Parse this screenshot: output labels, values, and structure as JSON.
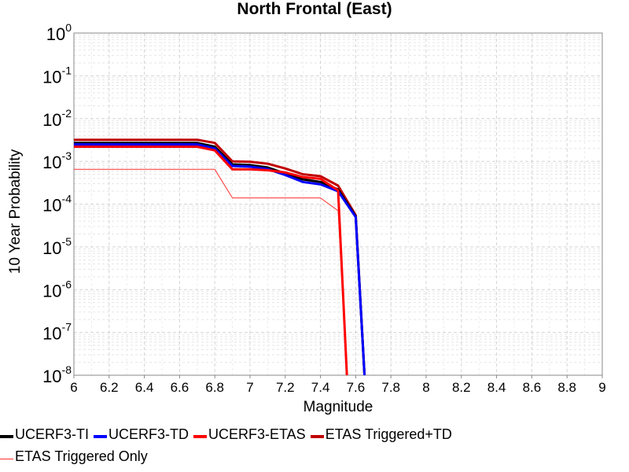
{
  "chart_data": {
    "type": "line",
    "title": "North Frontal  (East)",
    "xlabel": "Magnitude",
    "ylabel": "10 Year Probability",
    "xlim": [
      6,
      9
    ],
    "ylim": [
      1e-08,
      1
    ],
    "yscale": "log",
    "grid": true,
    "x_ticks": [
      "6",
      "6.2",
      "6.4",
      "6.6",
      "6.8",
      "7",
      "7.2",
      "7.4",
      "7.6",
      "7.8",
      "8",
      "8.2",
      "8.4",
      "8.6",
      "8.8",
      "9"
    ],
    "y_ticks": [
      {
        "value": 1,
        "base": "10",
        "exp": "0"
      },
      {
        "value": 0.1,
        "base": "10",
        "exp": "-1"
      },
      {
        "value": 0.01,
        "base": "10",
        "exp": "-2"
      },
      {
        "value": 0.001,
        "base": "10",
        "exp": "-3"
      },
      {
        "value": 0.0001,
        "base": "10",
        "exp": "-4"
      },
      {
        "value": 1e-05,
        "base": "10",
        "exp": "-5"
      },
      {
        "value": 1e-06,
        "base": "10",
        "exp": "-6"
      },
      {
        "value": 1e-07,
        "base": "10",
        "exp": "-7"
      },
      {
        "value": 1e-08,
        "base": "10",
        "exp": "-8"
      }
    ],
    "legend_position": "bottom",
    "series": [
      {
        "name": "UCERF3-TI",
        "color": "#000000",
        "width": 3,
        "x": [
          6.0,
          6.7,
          6.8,
          6.9,
          7.0,
          7.1,
          7.2,
          7.3,
          7.4,
          7.5,
          7.6,
          7.65
        ],
        "y": [
          0.0027,
          0.0027,
          0.0022,
          0.00085,
          0.00082,
          0.00072,
          0.00052,
          0.00038,
          0.00033,
          0.00022,
          5.2e-05,
          1e-08
        ]
      },
      {
        "name": "UCERF3-TD",
        "color": "#0000ff",
        "width": 3,
        "x": [
          6.0,
          6.7,
          6.8,
          6.9,
          7.0,
          7.1,
          7.2,
          7.3,
          7.4,
          7.5,
          7.6,
          7.65
        ],
        "y": [
          0.0025,
          0.0025,
          0.002,
          0.00078,
          0.00075,
          0.00066,
          0.00048,
          0.00033,
          0.00029,
          0.0002,
          5e-05,
          1e-08
        ]
      },
      {
        "name": "UCERF3-ETAS",
        "color": "#ff0000",
        "width": 3,
        "x": [
          6.0,
          6.7,
          6.8,
          6.9,
          7.0,
          7.1,
          7.2,
          7.3,
          7.4,
          7.5,
          7.55
        ],
        "y": [
          0.0022,
          0.0022,
          0.0018,
          0.00065,
          0.00065,
          0.00062,
          0.00055,
          0.00043,
          0.00039,
          0.00021,
          1e-08
        ]
      },
      {
        "name": "ETAS Triggered+TD",
        "color": "#c00000",
        "width": 3,
        "x": [
          6.0,
          6.7,
          6.8,
          6.9,
          7.0,
          7.1,
          7.2,
          7.3,
          7.4,
          7.5,
          7.6,
          7.65
        ],
        "y": [
          0.0032,
          0.0032,
          0.0027,
          0.001,
          0.00098,
          0.00088,
          0.00068,
          0.0005,
          0.00045,
          0.00027,
          5.5e-05,
          1e-08
        ]
      },
      {
        "name": "ETAS Triggered Only",
        "color": "#ff3030",
        "width": 1,
        "x": [
          6.0,
          6.8,
          6.9,
          7.4,
          7.5,
          7.55
        ],
        "y": [
          0.00065,
          0.00065,
          0.00014,
          0.00014,
          7e-05,
          1e-08
        ]
      }
    ]
  }
}
